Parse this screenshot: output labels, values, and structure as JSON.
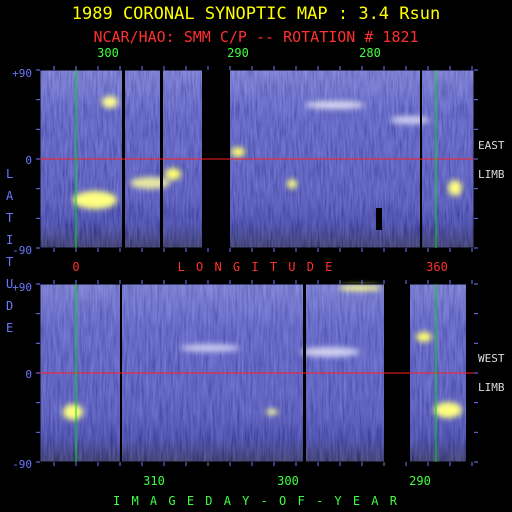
{
  "title": "1989 CORONAL SYNOPTIC MAP : 3.4 Rsun",
  "subtitle": "NCAR/HAO: SMM C/P -- ROTATION # 1821",
  "colors": {
    "title": "#ffff00",
    "subtitle": "#ff3030",
    "top_axis": "#40ff40",
    "bottom_axis": "#40ff40",
    "left_axis": "#6a78ff",
    "middle_axis": "#ff3030",
    "limb_labels": "#dddddd",
    "equator": "#ff2020",
    "meridian": "#00e000",
    "frame": "#000000"
  },
  "chart_data": [
    {
      "type": "heatmap",
      "panel": "east",
      "top_tick_labels": [
        "300",
        "290",
        "280"
      ],
      "bottom_tick_labels": [
        "0",
        "360"
      ],
      "y_tick_labels": [
        "+90",
        "0",
        "-90"
      ],
      "side_labels": [
        "EAST",
        "LIMB"
      ],
      "ylim": [
        -90,
        90
      ],
      "data_gaps": 3
    },
    {
      "type": "heatmap",
      "panel": "west",
      "y_tick_labels": [
        "+90",
        "0",
        "-90"
      ],
      "bottom_tick_labels": [
        "310",
        "300",
        "290"
      ],
      "side_labels": [
        "WEST",
        "LIMB"
      ],
      "ylim": [
        -90,
        90
      ],
      "data_gaps": 2
    }
  ],
  "axis_titles": {
    "left": "LATITUDE",
    "middle": "LONGITUDE",
    "bottom": "IMAGE DAY-OF-YEAR"
  }
}
